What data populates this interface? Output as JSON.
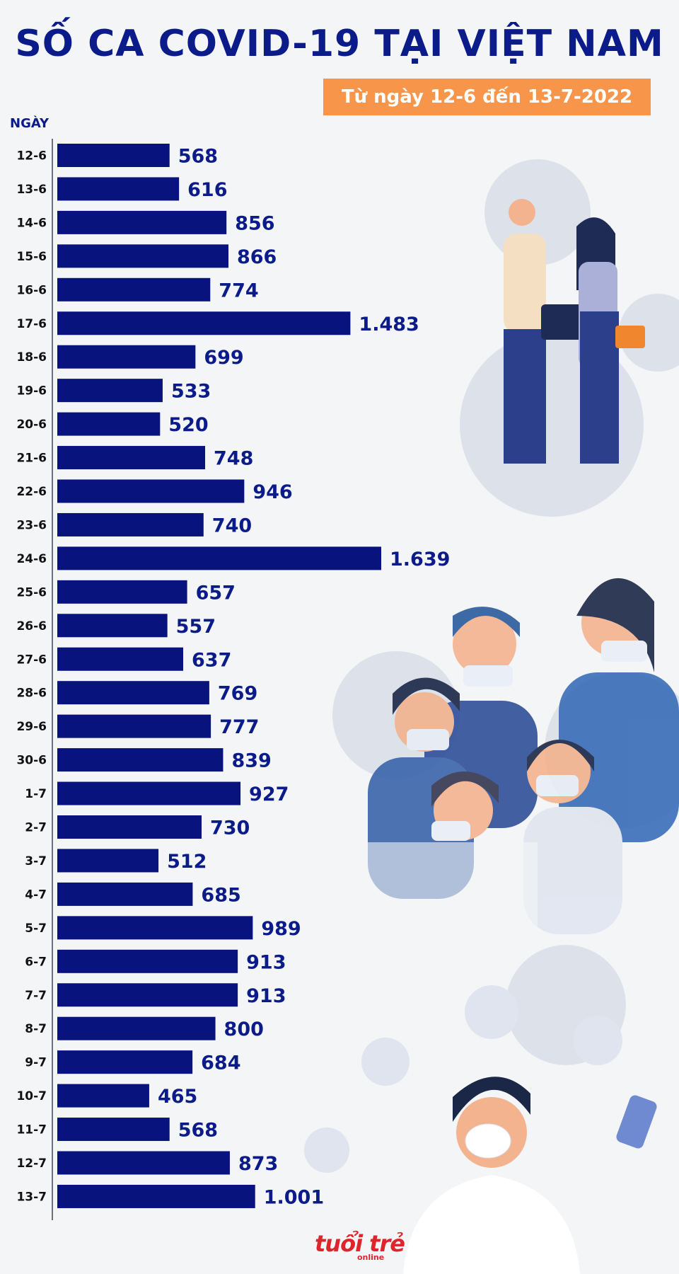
{
  "title": "SỐ CA COVID-19 TẠI VIỆT NAM",
  "subtitle": "Từ ngày 12-6 đến 13-7-2022",
  "axis_label": "NGÀY",
  "logo": "tuổi trẻ",
  "logo_sub": "online",
  "colors": {
    "bar": "#09137e",
    "title": "#0b1c8a",
    "subtitle_bg": "#f7954a",
    "virus": "#dde2ea"
  },
  "illustrations": [
    "couple-walking-masked-icon",
    "masked-crowd-icon",
    "doctor-masked-icon",
    "virus-icon"
  ],
  "chart_data": {
    "type": "bar",
    "orientation": "horizontal",
    "title": "SỐ CA COVID-19 TẠI VIỆT NAM",
    "subtitle": "Từ ngày 12-6 đến 13-7-2022",
    "ylabel": "NGÀY",
    "categories": [
      "12-6",
      "13-6",
      "14-6",
      "15-6",
      "16-6",
      "17-6",
      "18-6",
      "19-6",
      "20-6",
      "21-6",
      "22-6",
      "23-6",
      "24-6",
      "25-6",
      "26-6",
      "27-6",
      "28-6",
      "29-6",
      "30-6",
      "1-7",
      "2-7",
      "3-7",
      "4-7",
      "5-7",
      "6-7",
      "7-7",
      "8-7",
      "9-7",
      "10-7",
      "11-7",
      "12-7",
      "13-7"
    ],
    "values": [
      568,
      616,
      856,
      866,
      774,
      1483,
      699,
      533,
      520,
      748,
      946,
      740,
      1639,
      657,
      557,
      637,
      769,
      777,
      839,
      927,
      730,
      512,
      685,
      989,
      913,
      913,
      800,
      684,
      465,
      568,
      873,
      1001
    ],
    "labels": [
      "568",
      "616",
      "856",
      "866",
      "774",
      "1.483",
      "699",
      "533",
      "520",
      "748",
      "946",
      "740",
      "1.639",
      "657",
      "557",
      "637",
      "769",
      "777",
      "839",
      "927",
      "730",
      "512",
      "685",
      "989",
      "913",
      "913",
      "800",
      "684",
      "465",
      "568",
      "873",
      "1.001"
    ],
    "xlim": [
      0,
      1639
    ],
    "grid": false,
    "legend": "none"
  }
}
